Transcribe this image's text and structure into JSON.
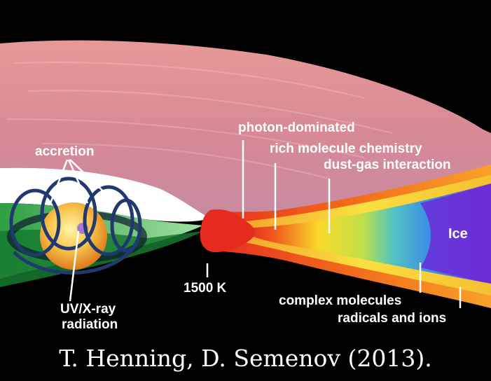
{
  "labels": {
    "accretion": "accretion",
    "photon_dominated": "photon-dominated",
    "rich_molecule_chemistry": "rich molecule chemistry",
    "dust_gas_interaction": "dust-gas interaction",
    "ice": "Ice",
    "temperature": "1500 K",
    "complex_molecules": "complex molecules",
    "radicals_and_ions": "radicals and ions",
    "uv_xray_line1": "UV/X-ray",
    "uv_xray_line2": "radiation"
  },
  "caption": "T. Henning, D. Semenov (2013).",
  "colors": {
    "background": "#000000",
    "disk_upper": "#e38a8a",
    "inner_rim": "#e52a1e",
    "ice_zone": "#6b2bd6",
    "star": "#f7b13a",
    "magnetic_field": "#203a70",
    "inner_disk_green": "#2f9e44",
    "label_text": "#ffffff"
  }
}
